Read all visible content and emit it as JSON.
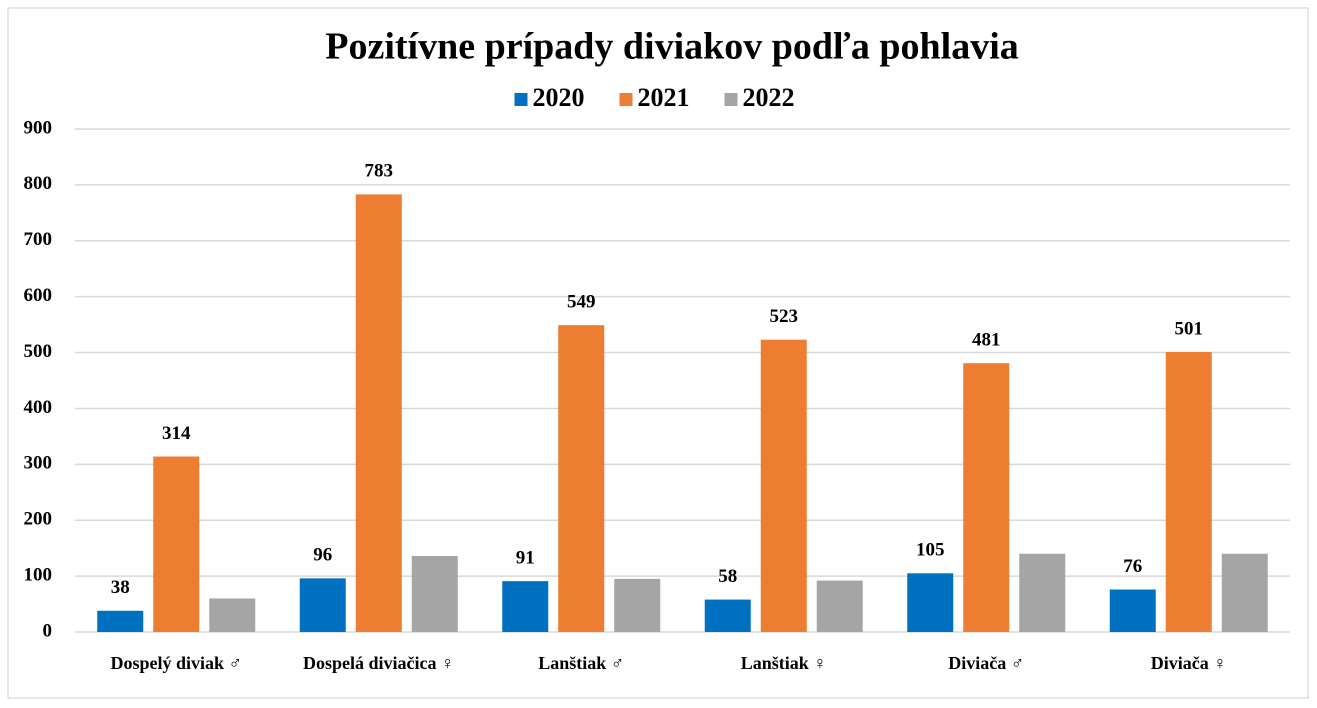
{
  "chart_data": {
    "type": "bar",
    "title": "Pozitívne prípady diviakov podľa pohlavia",
    "categories": [
      "Dospelý diviak ♂",
      "Dospelá diviačica ♀",
      "Lanštiak ♂",
      "Lanštiak ♀",
      "Diviača ♂",
      "Diviača ♀"
    ],
    "series": [
      {
        "name": "2020",
        "color": "#0070c0",
        "values": [
          38,
          96,
          91,
          58,
          105,
          76
        ],
        "data_labels": true
      },
      {
        "name": "2021",
        "color": "#ed7d31",
        "values": [
          314,
          783,
          549,
          523,
          481,
          501
        ],
        "data_labels": true
      },
      {
        "name": "2022",
        "color": "#a5a5a5",
        "values": [
          60,
          136,
          95,
          92,
          140,
          140
        ],
        "data_labels": false
      }
    ],
    "ylim": [
      0,
      900
    ],
    "yticks": [
      0,
      100,
      200,
      300,
      400,
      500,
      600,
      700,
      800,
      900
    ],
    "grid": true,
    "legend": "top"
  }
}
